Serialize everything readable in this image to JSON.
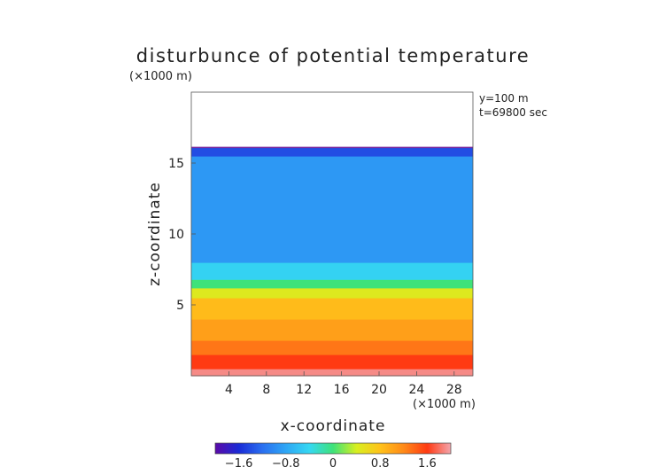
{
  "chart_data": {
    "type": "heatmap",
    "title": "disturbunce of potential temperature",
    "y_unit_label": "(×1000 m)",
    "x_unit_label": "(×1000 m)",
    "xlabel": "x-coordinate",
    "ylabel": "z-coordinate",
    "annotations": [
      "y=100 m",
      "t=69800 sec"
    ],
    "xlim": [
      0,
      30
    ],
    "ylim": [
      0,
      20
    ],
    "x_ticks": [
      4,
      8,
      12,
      16,
      20,
      24,
      28
    ],
    "y_ticks": [
      5,
      10,
      15
    ],
    "colorbar": {
      "ticks": [
        "-1.6",
        "-0.8",
        "0",
        "0.8",
        "1.6"
      ],
      "range": [
        -2.0,
        2.0
      ],
      "colors": [
        "#5a0aa8",
        "#1a2bd6",
        "#2a6ff0",
        "#2ea6f5",
        "#35d8f2",
        "#3ee27a",
        "#d8ef20",
        "#ffc21a",
        "#ff8a18",
        "#ff3a12",
        "#f3a5ad"
      ]
    },
    "layers": [
      {
        "z_from": 0.0,
        "z_to": 0.5,
        "value": 1.9
      },
      {
        "z_from": 0.5,
        "z_to": 1.5,
        "value": 1.6
      },
      {
        "z_from": 1.5,
        "z_to": 2.5,
        "value": 1.3
      },
      {
        "z_from": 2.5,
        "z_to": 4.0,
        "value": 1.05
      },
      {
        "z_from": 4.0,
        "z_to": 5.5,
        "value": 0.85
      },
      {
        "z_from": 5.5,
        "z_to": 6.2,
        "value": 0.45
      },
      {
        "z_from": 6.2,
        "z_to": 6.8,
        "value": 0.0
      },
      {
        "z_from": 6.8,
        "z_to": 8.0,
        "value": -0.45
      },
      {
        "z_from": 8.0,
        "z_to": 15.5,
        "value": -0.9
      },
      {
        "z_from": 15.5,
        "z_to": 16.1,
        "value": -1.4
      }
    ],
    "model_top": 16.1
  }
}
